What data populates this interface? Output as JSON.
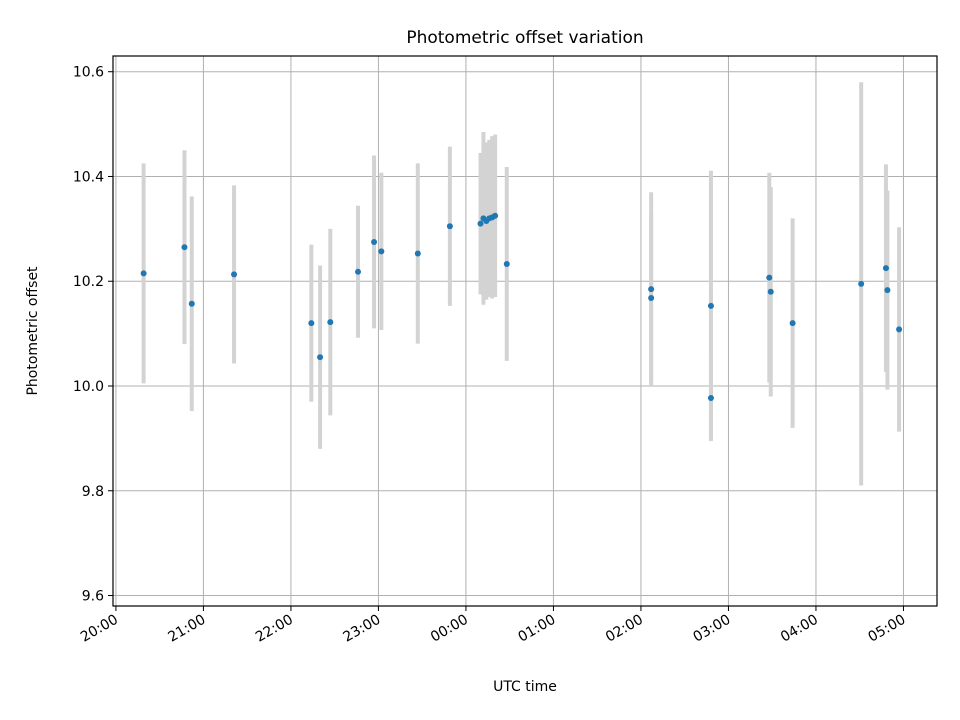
{
  "chart_data": {
    "type": "scatter",
    "title": "Photometric offset variation",
    "xlabel": "UTC time",
    "ylabel": "Photometric offset",
    "xlim": [
      "19:58",
      "05:23"
    ],
    "ylim": [
      9.58,
      10.63
    ],
    "grid": true,
    "x_ticks": [
      "20:00",
      "21:00",
      "22:00",
      "23:00",
      "00:00",
      "01:00",
      "02:00",
      "03:00",
      "04:00",
      "05:00"
    ],
    "y_ticks": [
      9.6,
      9.8,
      10.0,
      10.2,
      10.4,
      10.6
    ],
    "y_tick_labels": [
      "9.6",
      "9.8",
      "10.0",
      "10.2",
      "10.4",
      "10.6"
    ],
    "marker_color": "#1f77b4",
    "errorbar_color": "#d3d3d3",
    "points": [
      {
        "x": "20:19",
        "y": 10.215,
        "yerr": 0.21
      },
      {
        "x": "20:47",
        "y": 10.265,
        "yerr": 0.185
      },
      {
        "x": "20:52",
        "y": 10.157,
        "yerr": 0.205
      },
      {
        "x": "21:21",
        "y": 10.213,
        "yerr": 0.17
      },
      {
        "x": "22:14",
        "y": 10.12,
        "yerr": 0.15
      },
      {
        "x": "22:20",
        "y": 10.055,
        "yerr": 0.175
      },
      {
        "x": "22:27",
        "y": 10.122,
        "yerr": 0.178
      },
      {
        "x": "22:46",
        "y": 10.218,
        "yerr": 0.126
      },
      {
        "x": "22:57",
        "y": 10.275,
        "yerr": 0.165
      },
      {
        "x": "23:02",
        "y": 10.257,
        "yerr": 0.15
      },
      {
        "x": "23:27",
        "y": 10.253,
        "yerr": 0.172
      },
      {
        "x": "23:49",
        "y": 10.305,
        "yerr": 0.152
      },
      {
        "x": "00:10",
        "y": 10.31,
        "yerr": 0.135
      },
      {
        "x": "00:12",
        "y": 10.32,
        "yerr": 0.165
      },
      {
        "x": "00:14",
        "y": 10.315,
        "yerr": 0.15
      },
      {
        "x": "00:16",
        "y": 10.32,
        "yerr": 0.15
      },
      {
        "x": "00:18",
        "y": 10.322,
        "yerr": 0.155
      },
      {
        "x": "00:20",
        "y": 10.325,
        "yerr": 0.155
      },
      {
        "x": "00:28",
        "y": 10.233,
        "yerr": 0.185
      },
      {
        "x": "02:07",
        "y": 10.185,
        "yerr": 0.185
      },
      {
        "x": "02:07",
        "y": 10.168,
        "yerr": 0.16
      },
      {
        "x": "02:48",
        "y": 10.153,
        "yerr": 0.258
      },
      {
        "x": "02:48",
        "y": 9.977,
        "yerr": 0.08
      },
      {
        "x": "03:28",
        "y": 10.207,
        "yerr": 0.2
      },
      {
        "x": "03:29",
        "y": 10.18,
        "yerr": 0.2
      },
      {
        "x": "03:44",
        "y": 10.12,
        "yerr": 0.2
      },
      {
        "x": "04:31",
        "y": 10.195,
        "yerr": 0.385
      },
      {
        "x": "04:48",
        "y": 10.225,
        "yerr": 0.198
      },
      {
        "x": "04:49",
        "y": 10.183,
        "yerr": 0.19
      },
      {
        "x": "04:57",
        "y": 10.108,
        "yerr": 0.195
      }
    ]
  }
}
